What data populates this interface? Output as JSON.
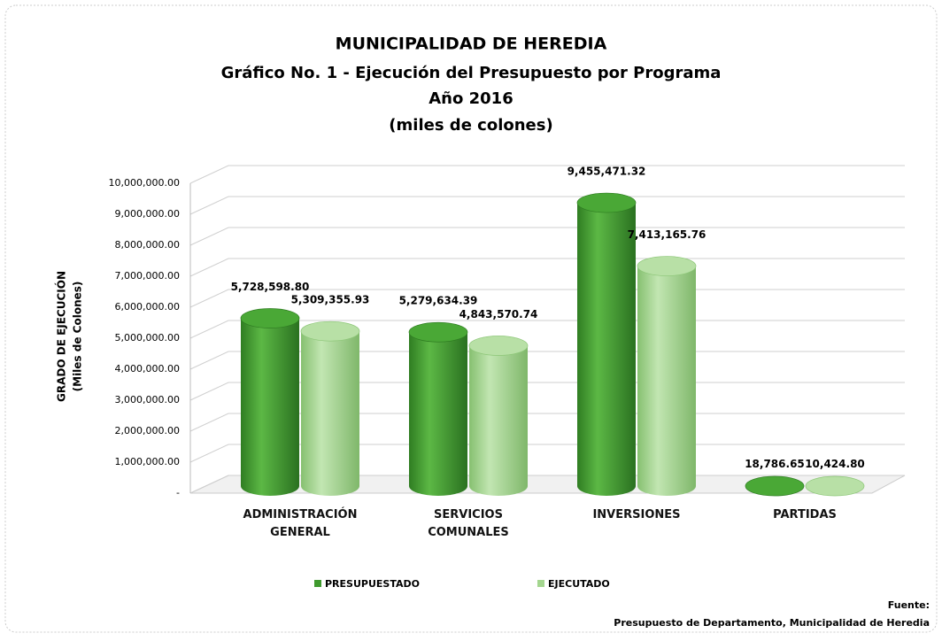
{
  "chart_data": {
    "type": "bar",
    "title": "MUNICIPALIDAD DE HEREDIA",
    "subtitle": [
      "Gráfico No. 1 - Ejecución del Presupuesto por Programa",
      "Año 2016",
      "(miles de colones)"
    ],
    "ylabel": [
      "GRADO DE EJECUCIÓN",
      "(Miles de Colones)"
    ],
    "categories": [
      "ADMINISTRACIÓN GENERAL",
      "SERVICIOS COMUNALES",
      "INVERSIONES",
      "PARTIDAS"
    ],
    "series": [
      {
        "name": "PRESUPUESTADO",
        "color": "#3f9a2e",
        "values": [
          5728598.8,
          5279634.39,
          9455471.32,
          18786.65
        ],
        "value_labels": [
          "5,728,598.80",
          "5,279,634.39",
          "9,455,471.32",
          "18,786.65"
        ]
      },
      {
        "name": "EJECUTADO",
        "color": "#a4d68f",
        "values": [
          5309355.93,
          4843570.74,
          7413165.76,
          10424.8
        ],
        "value_labels": [
          "5,309,355.93",
          "4,843,570.74",
          "7,413,165.76",
          "10,424.80"
        ]
      }
    ],
    "ylim": [
      0,
      10000000
    ],
    "yticks": [
      {
        "value": 0,
        "label": "-"
      },
      {
        "value": 1000000,
        "label": "1,000,000.00"
      },
      {
        "value": 2000000,
        "label": "2,000,000.00"
      },
      {
        "value": 3000000,
        "label": "3,000,000.00"
      },
      {
        "value": 4000000,
        "label": "4,000,000.00"
      },
      {
        "value": 5000000,
        "label": "5,000,000.00"
      },
      {
        "value": 6000000,
        "label": "6,000,000.00"
      },
      {
        "value": 7000000,
        "label": "7,000,000.00"
      },
      {
        "value": 8000000,
        "label": "8,000,000.00"
      },
      {
        "value": 9000000,
        "label": "9,000,000.00"
      },
      {
        "value": 10000000,
        "label": "10,000,000.00"
      }
    ],
    "grid": true,
    "legend": "bottom",
    "source": [
      "Fuente:",
      "Presupuesto de Departamento, Municipalidad de Heredia"
    ]
  }
}
